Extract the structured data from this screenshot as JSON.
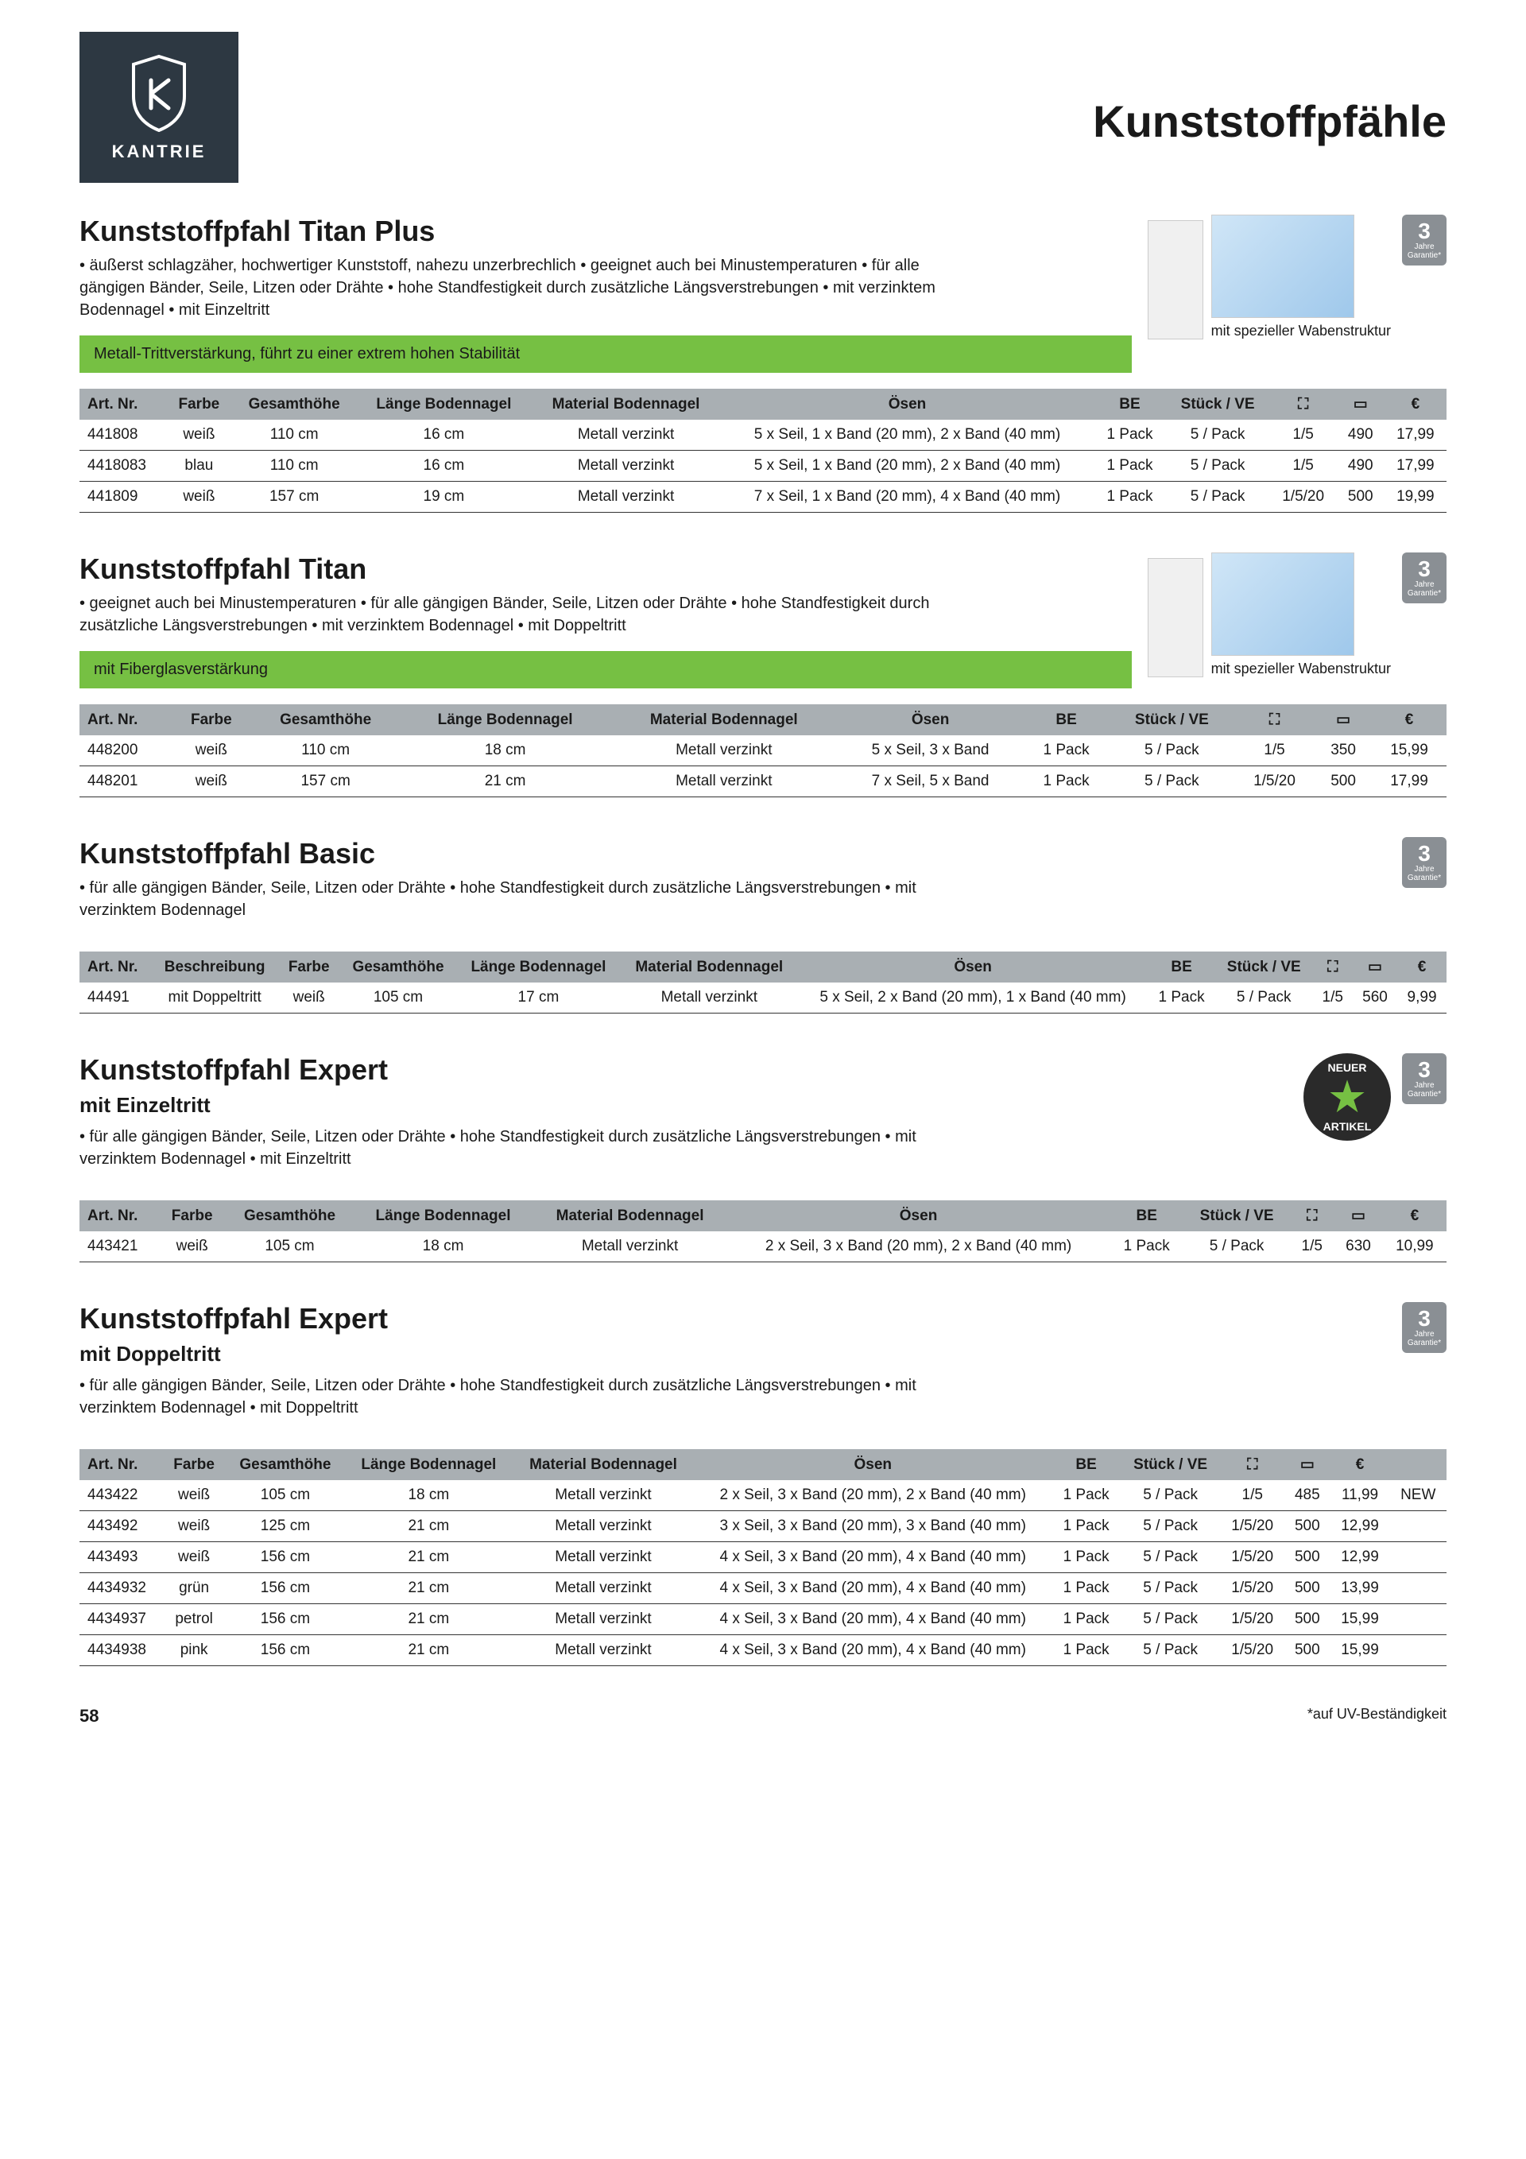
{
  "brand": "KANTRIE",
  "category_title": "Kunststoffpfähle",
  "warranty": {
    "years": "3",
    "label": "Jahre Garantie*"
  },
  "new_badge": {
    "top": "NEUER",
    "bottom": "ARTIKEL"
  },
  "caption": "mit spezieller Wabenstruktur",
  "footnote": "*auf UV-Beständigkeit",
  "page_number": "58",
  "icons": {
    "pallet": "⛶",
    "layer": "▭",
    "euro": "€"
  },
  "sections": [
    {
      "title": "Kunststoffpfahl Titan Plus",
      "desc": "• äußerst schlagzäher, hochwertiger Kunststoff, nahezu unzerbrechlich • geeignet auch bei Minustemperaturen • für alle gängigen Bänder, Seile, Litzen oder Drähte • hohe Standfestigkeit durch zusätzliche Längsverstrebungen • mit verzinktem Bodennagel • mit Einzeltritt",
      "green": "Metall-Trittverstärkung, führt zu einer extrem hohen Stabilität",
      "has_caption": true,
      "columns": [
        "Art. Nr.",
        "Farbe",
        "Gesamthöhe",
        "Länge Bodennagel",
        "Material Bodennagel",
        "Ösen",
        "BE",
        "Stück / VE",
        "⛶",
        "▭",
        "€"
      ],
      "rows": [
        [
          "441808",
          "weiß",
          "110 cm",
          "16 cm",
          "Metall verzinkt",
          "5 x Seil, 1 x Band (20 mm), 2 x Band (40 mm)",
          "1 Pack",
          "5 / Pack",
          "1/5",
          "490",
          "17,99"
        ],
        [
          "4418083",
          "blau",
          "110 cm",
          "16 cm",
          "Metall verzinkt",
          "5 x Seil, 1 x Band (20 mm), 2 x Band (40 mm)",
          "1 Pack",
          "5 / Pack",
          "1/5",
          "490",
          "17,99"
        ],
        [
          "441809",
          "weiß",
          "157 cm",
          "19 cm",
          "Metall verzinkt",
          "7 x Seil, 1 x Band (20 mm), 4 x Band (40 mm)",
          "1 Pack",
          "5 / Pack",
          "1/5/20",
          "500",
          "19,99"
        ]
      ]
    },
    {
      "title": "Kunststoffpfahl Titan",
      "desc": "• geeignet auch bei Minustemperaturen • für alle gängigen Bänder, Seile, Litzen oder Drähte • hohe Standfestigkeit durch zusätzliche Längsverstrebungen • mit verzinktem Bodennagel • mit Doppeltritt",
      "green": "mit Fiberglasverstärkung",
      "has_caption": true,
      "columns": [
        "Art. Nr.",
        "Farbe",
        "Gesamthöhe",
        "Länge Bodennagel",
        "Material Bodennagel",
        "Ösen",
        "BE",
        "Stück / VE",
        "⛶",
        "▭",
        "€"
      ],
      "rows": [
        [
          "448200",
          "weiß",
          "110 cm",
          "18 cm",
          "Metall verzinkt",
          "5 x Seil, 3 x Band",
          "1 Pack",
          "5 / Pack",
          "1/5",
          "350",
          "15,99"
        ],
        [
          "448201",
          "weiß",
          "157 cm",
          "21 cm",
          "Metall verzinkt",
          "7 x Seil, 5 x Band",
          "1 Pack",
          "5 / Pack",
          "1/5/20",
          "500",
          "17,99"
        ]
      ]
    },
    {
      "title": "Kunststoffpfahl Basic",
      "desc": "• für alle gängigen Bänder, Seile, Litzen oder Drähte • hohe Standfestigkeit durch zusätzliche Längsverstrebungen • mit verzinktem Bodennagel",
      "columns": [
        "Art. Nr.",
        "Beschreibung",
        "Farbe",
        "Gesamthöhe",
        "Länge Bodennagel",
        "Material Bodennagel",
        "Ösen",
        "BE",
        "Stück / VE",
        "⛶",
        "▭",
        "€"
      ],
      "rows": [
        [
          "44491",
          "mit Doppeltritt",
          "weiß",
          "105 cm",
          "17 cm",
          "Metall verzinkt",
          "5 x Seil, 2 x Band (20 mm), 1 x Band (40 mm)",
          "1 Pack",
          "5 / Pack",
          "1/5",
          "560",
          "9,99"
        ]
      ]
    },
    {
      "title": "Kunststoffpfahl Expert",
      "subtitle": "mit Einzeltritt",
      "desc": "• für alle gängigen Bänder, Seile, Litzen oder Drähte • hohe Standfestigkeit durch zusätzliche Längsverstrebungen • mit verzinktem Bodennagel • mit Einzeltritt",
      "has_new_badge": true,
      "columns": [
        "Art. Nr.",
        "Farbe",
        "Gesamthöhe",
        "Länge Bodennagel",
        "Material Bodennagel",
        "Ösen",
        "BE",
        "Stück / VE",
        "⛶",
        "▭",
        "€"
      ],
      "rows": [
        [
          "443421",
          "weiß",
          "105 cm",
          "18 cm",
          "Metall verzinkt",
          "2 x Seil, 3 x Band (20 mm), 2 x Band (40 mm)",
          "1 Pack",
          "5 / Pack",
          "1/5",
          "630",
          "10,99"
        ]
      ]
    },
    {
      "title": "Kunststoffpfahl Expert",
      "subtitle": "mit Doppeltritt",
      "desc": "• für alle gängigen Bänder, Seile, Litzen oder Drähte • hohe Standfestigkeit durch zusätzliche Längsverstrebungen • mit verzinktem Bodennagel • mit Doppeltritt",
      "columns": [
        "Art. Nr.",
        "Farbe",
        "Gesamthöhe",
        "Länge Bodennagel",
        "Material Bodennagel",
        "Ösen",
        "BE",
        "Stück / VE",
        "⛶",
        "▭",
        "€",
        ""
      ],
      "rows": [
        [
          "443422",
          "weiß",
          "105 cm",
          "18 cm",
          "Metall verzinkt",
          "2 x Seil, 3 x Band (20 mm), 2 x Band (40 mm)",
          "1 Pack",
          "5 / Pack",
          "1/5",
          "485",
          "11,99",
          "NEW"
        ],
        [
          "443492",
          "weiß",
          "125 cm",
          "21 cm",
          "Metall verzinkt",
          "3 x Seil, 3 x Band (20 mm), 3 x Band (40 mm)",
          "1 Pack",
          "5 / Pack",
          "1/5/20",
          "500",
          "12,99",
          ""
        ],
        [
          "443493",
          "weiß",
          "156 cm",
          "21 cm",
          "Metall verzinkt",
          "4 x Seil, 3 x Band (20 mm), 4 x Band (40 mm)",
          "1 Pack",
          "5 / Pack",
          "1/5/20",
          "500",
          "12,99",
          ""
        ],
        [
          "4434932",
          "grün",
          "156 cm",
          "21 cm",
          "Metall verzinkt",
          "4 x Seil, 3 x Band (20 mm), 4 x Band (40 mm)",
          "1 Pack",
          "5 / Pack",
          "1/5/20",
          "500",
          "13,99",
          ""
        ],
        [
          "4434937",
          "petrol",
          "156 cm",
          "21 cm",
          "Metall verzinkt",
          "4 x Seil, 3 x Band (20 mm), 4 x Band (40 mm)",
          "1 Pack",
          "5 / Pack",
          "1/5/20",
          "500",
          "15,99",
          ""
        ],
        [
          "4434938",
          "pink",
          "156 cm",
          "21 cm",
          "Metall verzinkt",
          "4 x Seil, 3 x Band (20 mm), 4 x Band (40 mm)",
          "1 Pack",
          "5 / Pack",
          "1/5/20",
          "500",
          "15,99",
          ""
        ]
      ]
    }
  ]
}
